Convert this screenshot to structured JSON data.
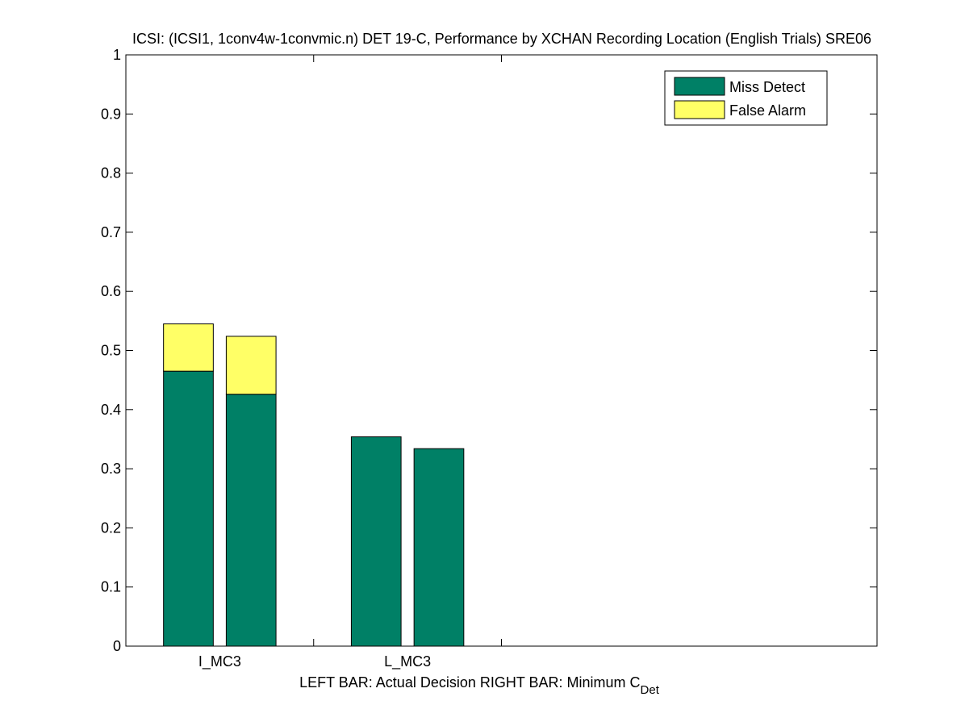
{
  "chart_data": {
    "type": "bar",
    "subtype": "stacked-grouped",
    "title": "ICSI: (ICSI1, 1conv4w-1convmic.n) DET 19-C,  Performance by XCHAN Recording Location (English Trials) SRE06",
    "xlabel_main": "LEFT BAR: Actual Decision     RIGHT BAR: Minimum C",
    "xlabel_sub": "Det",
    "ylabel": "",
    "ylim": [
      0,
      1
    ],
    "yticks": [
      0,
      0.1,
      0.2,
      0.3,
      0.4,
      0.5,
      0.6,
      0.7,
      0.8,
      0.9,
      1
    ],
    "ytick_labels": [
      "0",
      "0.1",
      "0.2",
      "0.3",
      "0.4",
      "0.5",
      "0.6",
      "0.7",
      "0.8",
      "0.9",
      "1"
    ],
    "categories": [
      "I_MC3",
      "L_MC3"
    ],
    "bars_per_category": [
      "Actual Decision",
      "Minimum C_Det"
    ],
    "series": [
      {
        "name": "Miss Detect",
        "color": "#008066",
        "values": [
          [
            0.465,
            0.426
          ],
          [
            0.354,
            0.334
          ]
        ]
      },
      {
        "name": "False Alarm",
        "color": "#FFFF66",
        "values": [
          [
            0.08,
            0.098
          ],
          [
            0.0,
            0.0
          ]
        ]
      }
    ],
    "legend": {
      "position": "top-right",
      "entries": [
        "Miss Detect",
        "False Alarm"
      ]
    },
    "grid": false
  }
}
